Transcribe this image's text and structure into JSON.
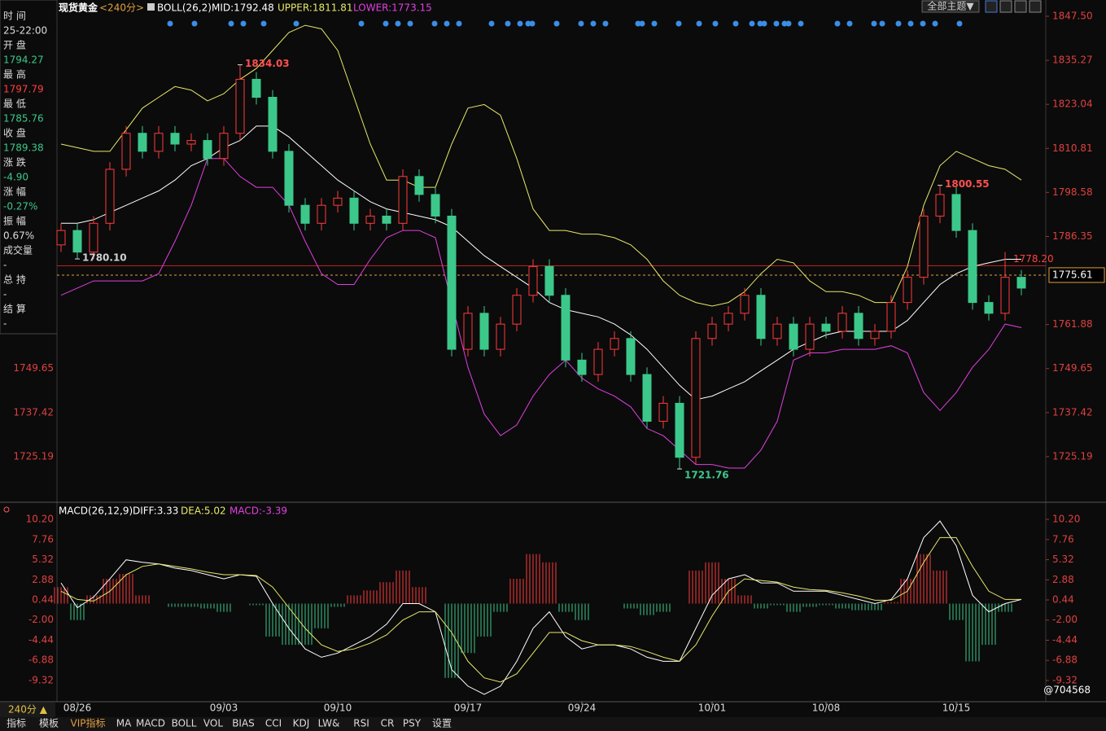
{
  "header": {
    "symbol": "现货黄金",
    "period": "<240分>",
    "indicator": "BOLL(26,2)",
    "mid": "MID:1792.48",
    "upper": "UPPER:1811.81",
    "lower": "LOWER:1773.15",
    "theme": "全部主题▼"
  },
  "info_panel": {
    "labels": [
      "时 间",
      "开 盘",
      "最 高",
      "最 低",
      "收 盘",
      "涨 跌",
      "涨 幅",
      "振 幅",
      "成交量",
      "总 持",
      "结 算"
    ],
    "values": [
      "25-22:00",
      "1794.27",
      "1797.79",
      "1785.76",
      "1789.38",
      "-4.90",
      "-0.27%",
      "0.67%",
      "-",
      "-",
      "-"
    ]
  },
  "chart_data": [
    {
      "type": "candlestick",
      "categories": [
        null,
        "08/26",
        null,
        null,
        null,
        null,
        null,
        null,
        null,
        null,
        "09/03",
        null,
        null,
        null,
        null,
        null,
        null,
        "09/10",
        null,
        null,
        null,
        null,
        null,
        null,
        null,
        "09/17",
        null,
        null,
        null,
        null,
        null,
        null,
        "09/24",
        null,
        null,
        null,
        null,
        null,
        null,
        null,
        "10/01",
        null,
        null,
        null,
        null,
        null,
        null,
        "10/08",
        null,
        null,
        null,
        null,
        null,
        null,
        null,
        "10/15",
        null,
        null,
        null,
        null
      ],
      "open": [
        1784,
        1788,
        1782,
        1790,
        1805,
        1815,
        1810,
        1815,
        1812,
        1813,
        1808,
        1815,
        1830,
        1825,
        1810,
        1795,
        1790,
        1795,
        1797,
        1790,
        1792,
        1790,
        1803,
        1798,
        1792,
        1755,
        1765,
        1755,
        1762,
        1770,
        1778,
        1770,
        1752,
        1748,
        1755,
        1758,
        1748,
        1735,
        1740,
        1725,
        1758,
        1762,
        1765,
        1770,
        1758,
        1762,
        1755,
        1762,
        1760,
        1765,
        1758,
        1760,
        1768,
        1775,
        1792,
        1798,
        1788,
        1768,
        1765,
        1775
      ],
      "high": [
        1790,
        1790,
        1792,
        1807,
        1817,
        1817,
        1817,
        1817,
        1815,
        1815,
        1817,
        1834.03,
        1832,
        1827,
        1812,
        1797,
        1797,
        1799,
        1799,
        1794,
        1794,
        1805,
        1805,
        1800,
        1794,
        1767,
        1767,
        1764,
        1772,
        1780,
        1780,
        1772,
        1754,
        1757,
        1760,
        1760,
        1750,
        1742,
        1742,
        1760,
        1764,
        1767,
        1772,
        1772,
        1764,
        1764,
        1764,
        1764,
        1767,
        1767,
        1762,
        1770,
        1777,
        1794,
        1800.55,
        1800,
        1790,
        1770,
        1782,
        1777
      ],
      "low": [
        1782,
        1780.1,
        1780,
        1788,
        1803,
        1808,
        1808,
        1810,
        1810,
        1806,
        1806,
        1813,
        1823,
        1808,
        1793,
        1788,
        1788,
        1793,
        1788,
        1788,
        1788,
        1788,
        1796,
        1790,
        1753,
        1753,
        1753,
        1753,
        1760,
        1768,
        1768,
        1750,
        1746,
        1746,
        1753,
        1746,
        1733,
        1733,
        1721.76,
        1723,
        1756,
        1760,
        1763,
        1756,
        1756,
        1753,
        1753,
        1758,
        1758,
        1756,
        1756,
        1758,
        1766,
        1773,
        1790,
        1786,
        1766,
        1763,
        1763,
        1770
      ],
      "close": [
        1788,
        1782,
        1790,
        1805,
        1815,
        1810,
        1815,
        1812,
        1813,
        1808,
        1815,
        1830,
        1825,
        1810,
        1795,
        1790,
        1795,
        1797,
        1790,
        1792,
        1790,
        1803,
        1798,
        1792,
        1755,
        1765,
        1755,
        1762,
        1770,
        1778,
        1770,
        1752,
        1748,
        1755,
        1758,
        1748,
        1735,
        1740,
        1725,
        1758,
        1762,
        1765,
        1770,
        1758,
        1762,
        1755,
        1762,
        1760,
        1765,
        1758,
        1760,
        1768,
        1775,
        1792,
        1798,
        1788,
        1768,
        1765,
        1775,
        1772
      ],
      "up_color": "#ff3b3b",
      "down_color": "#3cc88a",
      "bands": [
        {
          "color": "#e8e86a",
          "values": [
            1812,
            1811,
            1810,
            1810,
            1816,
            1822,
            1825,
            1828,
            1827,
            1824,
            1826,
            1830,
            1833,
            1838,
            1843,
            1845,
            1844,
            1838,
            1825,
            1812,
            1802,
            1802,
            1800,
            1800,
            1812,
            1822,
            1823,
            1820,
            1808,
            1794,
            1788,
            1788,
            1787,
            1787,
            1786,
            1784,
            1780,
            1774,
            1770,
            1768,
            1767,
            1768,
            1771,
            1776,
            1780,
            1779,
            1774,
            1771,
            1771,
            1770,
            1768,
            1768,
            1778,
            1795,
            1806,
            1810,
            1808,
            1806,
            1805,
            1802
          ]
        },
        {
          "color": "#ffffff",
          "values": [
            1790,
            1790,
            1791,
            1793,
            1795,
            1797,
            1799,
            1802,
            1806,
            1808,
            1811,
            1813,
            1817,
            1817,
            1814,
            1810,
            1806,
            1802,
            1799,
            1796,
            1794,
            1793,
            1792,
            1791,
            1789,
            1785,
            1781,
            1778,
            1775,
            1772,
            1768,
            1766,
            1765,
            1764,
            1762,
            1759,
            1755,
            1750,
            1745,
            1741,
            1742,
            1744,
            1746,
            1749,
            1752,
            1755,
            1757,
            1759,
            1760,
            1760,
            1760,
            1760,
            1763,
            1768,
            1773,
            1776,
            1778,
            1779,
            1780,
            1780
          ]
        },
        {
          "color": "#e040e0",
          "values": [
            1770,
            1772,
            1774,
            1774,
            1774,
            1774,
            1776,
            1785,
            1795,
            1808,
            1808,
            1803,
            1800,
            1800,
            1795,
            1785,
            1776,
            1773,
            1773,
            1780,
            1786,
            1788,
            1788,
            1786,
            1768,
            1750,
            1737,
            1731,
            1734,
            1742,
            1748,
            1752,
            1747,
            1744,
            1742,
            1739,
            1733,
            1731,
            1727,
            1723,
            1723,
            1722,
            1722,
            1727,
            1735,
            1752,
            1754,
            1754,
            1755,
            1755,
            1755,
            1756,
            1754,
            1743,
            1738,
            1743,
            1750,
            1755,
            1762,
            1761
          ]
        }
      ],
      "ylim": [
        1712.96,
        1848.86
      ],
      "yticks": [
        {
          "value": 1847.5,
          "label": "1847.50"
        },
        1835.27,
        1823.04,
        1810.81,
        1798.58,
        1786.35,
        1761.88,
        1749.65,
        1737.42,
        1725.19
      ],
      "last_price": 1775.61,
      "ref_line": {
        "value": 1778.2,
        "label": "1778.20"
      },
      "annotations": [
        {
          "value": 1834.03,
          "index": 11,
          "color": "#ff5050"
        },
        {
          "value": 1780.1,
          "label": "1780.10",
          "index": 1,
          "color": "#d0d0d0"
        },
        {
          "value": 1721.76,
          "index": 38,
          "color": "#3cc88a"
        },
        {
          "value": 1800.55,
          "index": 54,
          "color": "#ff5050"
        }
      ]
    },
    {
      "type": "macd",
      "title": "MACD(26,12,9)",
      "diff_label": "DIFF:3.33",
      "dea_label": "DEA:5.02",
      "macd_label": "MACD:-3.39",
      "diff": {
        "color": "#ffffff",
        "values": [
          2.5,
          -0.5,
          0.8,
          3,
          5.3,
          5,
          4.8,
          4.3,
          4,
          3.5,
          3,
          3.5,
          3.3,
          0,
          -3,
          -5.5,
          -6.5,
          -6,
          -5,
          -4,
          -2.5,
          0,
          0,
          -1,
          -8,
          -10,
          -11,
          -10,
          -7,
          -3,
          -1,
          -4,
          -5.5,
          -5,
          -5,
          -5.5,
          -6.5,
          -7,
          -7,
          -3,
          1,
          3,
          3.5,
          2.5,
          2.5,
          1.5,
          1.5,
          1.5,
          1,
          0.5,
          0,
          0.5,
          3,
          8,
          10,
          7,
          1,
          -1,
          0,
          0.5
        ]
      },
      "dea": {
        "color": "#e8e86a",
        "values": [
          1.5,
          0.5,
          0.3,
          1.5,
          3.5,
          4.5,
          4.8,
          4.5,
          4.2,
          3.8,
          3.5,
          3.5,
          3.4,
          2,
          -0.5,
          -3,
          -5,
          -5.8,
          -5.5,
          -4.8,
          -3.8,
          -2,
          -1,
          -1,
          -3.5,
          -7,
          -9,
          -9.5,
          -8.5,
          -6,
          -3.5,
          -3.5,
          -4.5,
          -5,
          -5,
          -5.2,
          -5.8,
          -6.5,
          -7,
          -5,
          -1.5,
          1.5,
          3,
          2.8,
          2.6,
          2,
          1.7,
          1.6,
          1.3,
          0.9,
          0.4,
          0.4,
          1.5,
          5,
          8,
          8,
          4.5,
          1.5,
          0.5,
          0.5
        ]
      },
      "hist": [
        2,
        -2,
        1,
        3,
        3.6,
        1,
        0,
        -0.4,
        -0.4,
        -0.6,
        -1,
        0,
        -0.2,
        -4,
        -5,
        -5,
        -3,
        -0.4,
        1,
        1.6,
        2.6,
        4,
        2,
        0,
        -9,
        -6,
        -4,
        -1,
        3,
        6,
        5,
        -1,
        -2,
        0,
        0,
        -0.6,
        -1.4,
        -1,
        0,
        4,
        5,
        3,
        1,
        -0.6,
        -0.2,
        -1,
        -0.4,
        -0.2,
        -0.6,
        -0.8,
        -0.8,
        0.2,
        3,
        6,
        4,
        -2,
        -7,
        -5,
        -1,
        0
      ],
      "up_color": "#ff3b3b",
      "down_color": "#3cc88a",
      "ylim": [
        -11.69,
        11.98
      ],
      "yticks": [
        {
          "value": 10.2,
          "label": "10.20"
        },
        7.76,
        5.32,
        2.88,
        0.44,
        {
          "value": -2,
          "label": "-2.00"
        },
        -4.44,
        -6.88,
        -9.32
      ]
    }
  ],
  "footer": {
    "period": "240分 ▲",
    "tabs": [
      "指标",
      "模板",
      "VIP指标",
      "MA",
      "MACD",
      "BOLL",
      "VOL",
      "BIAS",
      "CCI",
      "KDJ",
      "LW&",
      "RSI",
      "CR",
      "PSY",
      "设置"
    ]
  },
  "watermark": "@704568"
}
